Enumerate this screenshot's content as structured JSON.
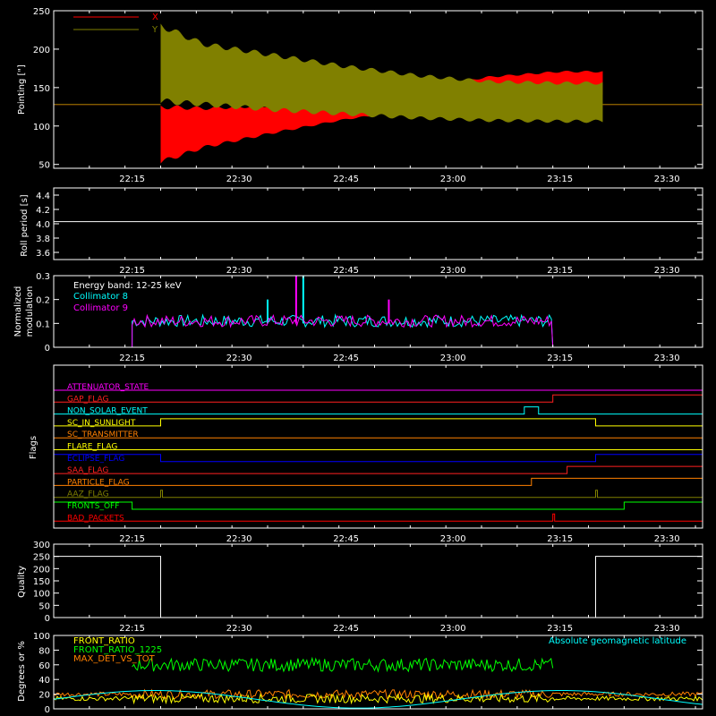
{
  "colors": {
    "background": "#000000",
    "axis": "#ffffff",
    "pointing_x": "#ff0000",
    "pointing_y": "#808000",
    "collimator8": "#00ffff",
    "collimator9": "#ff00ff",
    "front_ratio": "#ffff00",
    "front_ratio_1225": "#00ff00",
    "max_det_vs_tot": "#ff8000",
    "geomag": "#00ffff"
  },
  "chart_data": [
    {
      "id": "pointing",
      "type": "line",
      "ylabel": "Pointing [\"]",
      "ylim": [
        45,
        250
      ],
      "yticks": [
        50,
        100,
        150,
        200,
        250
      ],
      "xlim_minutes": [
        0,
        91
      ],
      "xticks": [
        "22:15",
        "22:30",
        "22:45",
        "23:00",
        "23:15",
        "23:30"
      ],
      "legend": "top-left",
      "series": [
        {
          "name": "X",
          "color": "#ff0000",
          "baseline": 128,
          "data_start": "22:19",
          "data_end": "23:21",
          "envelope_time": [
            "22:19",
            "22:25",
            "22:35",
            "22:45",
            "22:55",
            "23:05",
            "23:15",
            "23:21"
          ],
          "envelope_min": [
            50,
            70,
            90,
            108,
            120,
            135,
            140,
            140
          ],
          "envelope_max": [
            128,
            125,
            128,
            130,
            150,
            165,
            172,
            172
          ]
        },
        {
          "name": "Y",
          "color": "#808000",
          "baseline": 128,
          "data_start": "22:19",
          "data_end": "23:21",
          "envelope_time": [
            "22:19",
            "22:25",
            "22:35",
            "22:45",
            "22:55",
            "23:05",
            "23:15",
            "23:21"
          ],
          "envelope_min": [
            128,
            125,
            118,
            113,
            108,
            105,
            104,
            104
          ],
          "envelope_max": [
            235,
            210,
            195,
            180,
            168,
            160,
            158,
            158
          ]
        }
      ]
    },
    {
      "id": "roll",
      "type": "line",
      "ylabel": "Roll period [s]",
      "ylim": [
        3.5,
        4.5
      ],
      "yticks": [
        "3.6",
        "3.8",
        "4.0",
        "4.2",
        "4.4"
      ],
      "xticks": [
        "22:15",
        "22:30",
        "22:45",
        "23:00",
        "23:15",
        "23:30"
      ],
      "value": 4.03
    },
    {
      "id": "modulation",
      "type": "line",
      "ylabel": [
        "Normalized",
        "modulation"
      ],
      "ylim": [
        0,
        0.3
      ],
      "yticks": [
        "0",
        "0.1",
        "0.2",
        "0.3"
      ],
      "xticks": [
        "22:15",
        "22:30",
        "22:45",
        "23:00",
        "23:15",
        "23:30"
      ],
      "annotation": "Energy band: 12-25 keV",
      "series": [
        {
          "name": "Collimator 8",
          "color": "#00ffff",
          "data_start": "22:15",
          "data_end": "23:14",
          "typical": 0.1,
          "spikes": [
            [
              "22:39",
              0.3
            ],
            [
              "22:34",
              0.2
            ]
          ]
        },
        {
          "name": "Collimator 9",
          "color": "#ff00ff",
          "data_start": "22:15",
          "data_end": "23:14",
          "typical": 0.1,
          "spikes": [
            [
              "22:38",
              0.3
            ],
            [
              "22:51",
              0.2
            ]
          ]
        }
      ]
    },
    {
      "id": "flags",
      "type": "line",
      "ylabel": "Flags",
      "xticks": [
        "22:15",
        "22:30",
        "22:45",
        "23:00",
        "23:15",
        "23:30"
      ],
      "flags": [
        {
          "name": "ATTENUATOR_STATE",
          "color": "#ff00ff",
          "high": []
        },
        {
          "name": "GAP_FLAG",
          "color": "#ff2020",
          "high": [
            [
              "23:14",
              "23:40"
            ]
          ]
        },
        {
          "name": "NON_SOLAR_EVENT",
          "color": "#00ffff",
          "high": [
            [
              "23:10",
              "23:12"
            ]
          ]
        },
        {
          "name": "SC_IN_SUNLIGHT",
          "color": "#ffff00",
          "high": [
            [
              "22:19",
              "23:20"
            ]
          ]
        },
        {
          "name": "SC_TRANSMITTER",
          "color": "#ff8000",
          "high": []
        },
        {
          "name": "FLARE_FLAG",
          "color": "#ffff00",
          "high": []
        },
        {
          "name": "ECLIPSE_FLAG",
          "color": "#0000ff",
          "high": [
            [
              "22:00",
              "22:19"
            ],
            [
              "23:20",
              "23:45"
            ]
          ]
        },
        {
          "name": "SAA_FLAG",
          "color": "#ff2020",
          "high": [
            [
              "23:16",
              "23:36"
            ]
          ]
        },
        {
          "name": "PARTICLE_FLAG",
          "color": "#ff8000",
          "high": [
            [
              "23:11",
              "23:35"
            ]
          ]
        },
        {
          "name": "AAZ_FLAG",
          "color": "#808000",
          "high": [
            [
              "22:19",
              "22:19"
            ],
            [
              "23:20",
              "23:20"
            ]
          ]
        },
        {
          "name": "FRONTS_OFF",
          "color": "#00ff00",
          "high": [
            [
              "22:00",
              "22:15"
            ],
            [
              "23:24",
              "23:45"
            ]
          ]
        },
        {
          "name": "BAD_PACKETS",
          "color": "#ff0000",
          "high": [
            [
              "23:14",
              "23:14"
            ]
          ]
        }
      ]
    },
    {
      "id": "quality",
      "type": "line",
      "ylabel": "Quality",
      "ylim": [
        0,
        300
      ],
      "yticks": [
        "0",
        "50",
        "100",
        "150",
        "200",
        "250",
        "300"
      ],
      "xticks": [
        "22:15",
        "22:30",
        "22:45",
        "23:00",
        "23:15",
        "23:30"
      ],
      "high_value": 250,
      "high_intervals": [
        [
          "22:00",
          "22:19"
        ],
        [
          "23:20",
          "23:45"
        ]
      ]
    },
    {
      "id": "ratios",
      "type": "line",
      "ylabel": "Degrees or %",
      "ylim": [
        0,
        100
      ],
      "yticks": [
        "0",
        "20",
        "40",
        "60",
        "80",
        "100"
      ],
      "xticks": [
        "22:15",
        "22:30",
        "22:45",
        "23:00",
        "23:15",
        "23:30"
      ],
      "annotation": "Absolute geomagnetic latitude",
      "series": [
        {
          "name": "FRONT_RATIO",
          "color": "#ffff00",
          "typical": 14
        },
        {
          "name": "FRONT_RATIO_1225",
          "color": "#00ff00",
          "typical": 60
        },
        {
          "name": "MAX_DET_VS_TOT",
          "color": "#ff8000",
          "typical": 20
        }
      ]
    }
  ]
}
